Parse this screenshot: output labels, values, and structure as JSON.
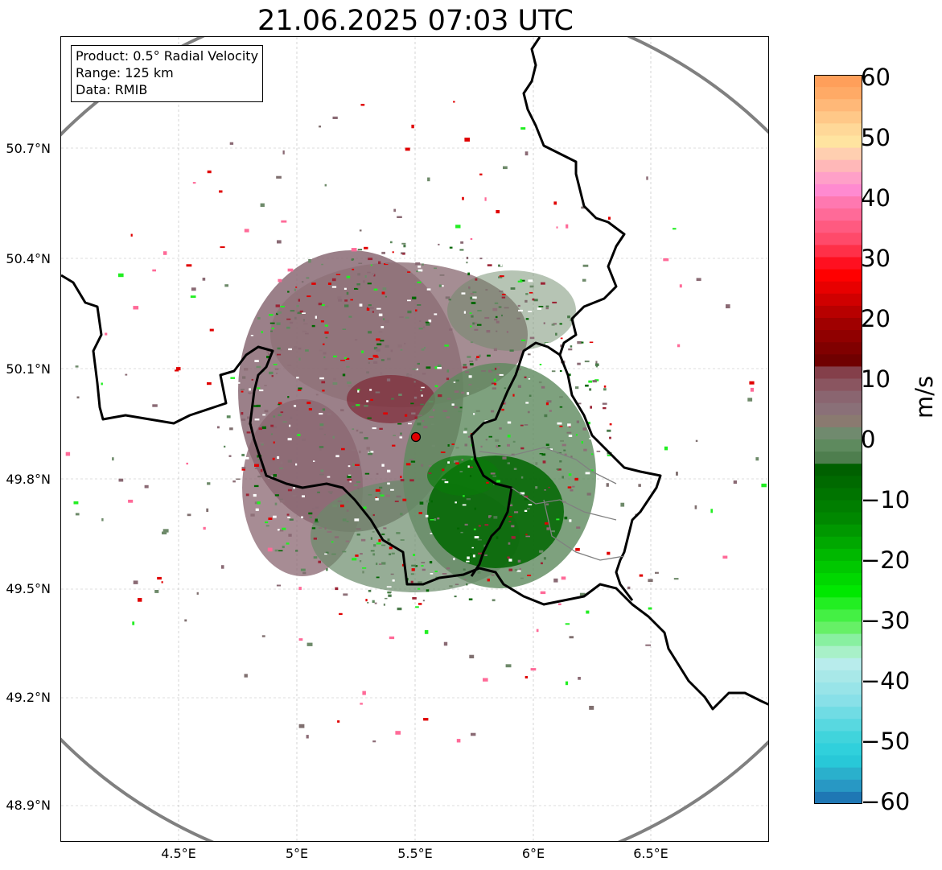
{
  "title": "21.06.2025 07:03 UTC",
  "info_box": {
    "product": "Product: 0.5° Radial Velocity",
    "range": "Range: 125 km",
    "source": "Data: RMIB"
  },
  "map": {
    "lon_range": [
      4.0,
      7.0
    ],
    "lat_range": [
      48.8,
      51.0
    ],
    "x_ticks": [
      "4.5°E",
      "5°E",
      "5.5°E",
      "6°E",
      "6.5°E"
    ],
    "y_ticks": [
      "50.7°N",
      "50.4°N",
      "50.1°N",
      "49.8°N",
      "49.5°N",
      "49.2°N",
      "48.9°N"
    ],
    "grid": true,
    "radar_site": {
      "lon": 5.5,
      "lat": 49.91
    },
    "range_ring_km": 125,
    "range_ring_color": "#808080",
    "radar_marker_color": "#e00000"
  },
  "colorbar": {
    "label": "m/s",
    "range": [
      -60,
      60
    ],
    "ticks": [
      "60",
      "50",
      "40",
      "30",
      "20",
      "10",
      "0",
      "−10",
      "−20",
      "−30",
      "−40",
      "−50",
      "−60"
    ],
    "colors": {
      "positive_high": "#ff9f5a",
      "positive_pink": "#ff6a98",
      "positive_red": "#e00000",
      "near_zero_positive": "#8a6a74",
      "near_zero_negative": "#5e8a5e",
      "negative_green": "#006600",
      "negative_bright": "#22ee22",
      "negative_cyan": "#40dcdc",
      "negative_blue": "#1f77b4"
    }
  }
}
